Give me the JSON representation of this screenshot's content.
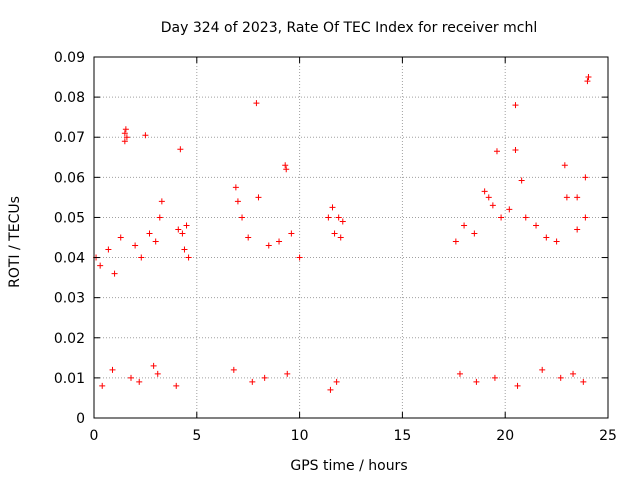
{
  "chart_data": {
    "type": "scatter",
    "title": "Day 324 of 2023, Rate Of TEC Index for receiver mchl",
    "xlabel": "GPS time / hours",
    "ylabel": "ROTI / TECUs",
    "xlim": [
      0,
      25
    ],
    "ylim": [
      0,
      0.09
    ],
    "xticks": [
      0,
      5,
      10,
      15,
      20,
      25
    ],
    "xtick_labels": [
      "0",
      "5",
      "10",
      "15",
      "20",
      "25"
    ],
    "yticks": [
      0,
      0.01,
      0.02,
      0.03,
      0.04,
      0.05,
      0.06,
      0.07,
      0.08,
      0.09
    ],
    "ytick_labels": [
      "0",
      "0.01",
      "0.02",
      "0.03",
      "0.04",
      "0.05",
      "0.06",
      "0.07",
      "0.08",
      "0.09"
    ],
    "grid": true,
    "marker": "+",
    "color": "#ff0000",
    "series": [
      {
        "name": "ROTI",
        "x": [
          1.5,
          1.55,
          1.6,
          1.5,
          2.5,
          4.2,
          7.9,
          9.3,
          9.35,
          11.6,
          19.6,
          20.5,
          20.5,
          20.8,
          24.0,
          24.05,
          22.9,
          23.9,
          19.0,
          19.4,
          23.5,
          6.9,
          7.0,
          8.0,
          3.3,
          3.2,
          12.1,
          11.9,
          4.5,
          4.1,
          0.1,
          0.3,
          0.7,
          1.0,
          1.3,
          2.0,
          2.3,
          2.7,
          3.0,
          4.3,
          4.4,
          4.6,
          7.2,
          7.5,
          8.5,
          9.0,
          9.6,
          10.0,
          11.4,
          11.7,
          12.0,
          17.6,
          18.0,
          18.5,
          19.2,
          19.8,
          20.2,
          21.0,
          21.5,
          22.0,
          22.5,
          23.0,
          23.5,
          23.9,
          0.4,
          0.9,
          1.8,
          2.2,
          2.9,
          3.1,
          4.0,
          6.8,
          7.7,
          8.3,
          9.4,
          11.5,
          11.8,
          17.8,
          18.6,
          19.5,
          20.6,
          21.8,
          22.7,
          23.3,
          23.8
        ],
        "y": [
          0.071,
          0.072,
          0.07,
          0.069,
          0.0705,
          0.067,
          0.0785,
          0.063,
          0.062,
          0.0525,
          0.0665,
          0.0668,
          0.078,
          0.0592,
          0.084,
          0.085,
          0.063,
          0.06,
          0.0565,
          0.053,
          0.055,
          0.0575,
          0.054,
          0.055,
          0.054,
          0.05,
          0.049,
          0.05,
          0.048,
          0.047,
          0.04,
          0.038,
          0.042,
          0.036,
          0.045,
          0.043,
          0.04,
          0.046,
          0.044,
          0.046,
          0.042,
          0.04,
          0.05,
          0.045,
          0.043,
          0.044,
          0.046,
          0.04,
          0.05,
          0.046,
          0.045,
          0.044,
          0.048,
          0.046,
          0.055,
          0.05,
          0.052,
          0.05,
          0.048,
          0.045,
          0.044,
          0.055,
          0.047,
          0.05,
          0.008,
          0.012,
          0.01,
          0.009,
          0.013,
          0.011,
          0.008,
          0.012,
          0.009,
          0.01,
          0.011,
          0.007,
          0.009,
          0.011,
          0.009,
          0.01,
          0.008,
          0.012,
          0.01,
          0.011,
          0.009
        ]
      }
    ]
  }
}
